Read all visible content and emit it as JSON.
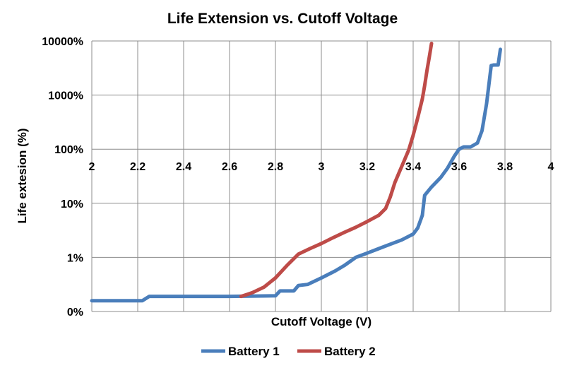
{
  "chart_data": {
    "type": "line",
    "title": "Life Extension vs. Cutoff Voltage",
    "xlabel": "Cutoff Voltage (V)",
    "ylabel": "Life extesion (%)",
    "x_ticks": [
      "2",
      "2.2",
      "2.4",
      "2.6",
      "2.8",
      "3",
      "3.2",
      "3.4",
      "3.6",
      "3.8",
      "4"
    ],
    "y_ticks": [
      "0%",
      "1%",
      "10%",
      "100%",
      "1000%",
      "10000%"
    ],
    "xlim": [
      2,
      4
    ],
    "y_scale": "log",
    "y_category_axis": "0% shown at the bottom as the axis floor; 1%–10000% decades on log scale",
    "grid": true,
    "legend_position": "bottom",
    "colors": {
      "Battery 1": "#4a7ebb",
      "Battery 2": "#be4b48"
    },
    "series": [
      {
        "name": "Battery 1",
        "x": [
          2.0,
          2.22,
          2.25,
          2.5,
          2.6,
          2.8,
          2.82,
          2.88,
          2.9,
          2.94,
          3.0,
          3.06,
          3.1,
          3.15,
          3.2,
          3.25,
          3.3,
          3.35,
          3.4,
          3.42,
          3.44,
          3.45,
          3.48,
          3.52,
          3.55,
          3.58,
          3.6,
          3.62,
          3.65,
          3.68,
          3.7,
          3.72,
          3.74,
          3.75,
          3.77,
          3.78
        ],
        "y": [
          0.2,
          0.2,
          0.28,
          0.28,
          0.28,
          0.29,
          0.38,
          0.38,
          0.48,
          0.5,
          0.62,
          0.75,
          0.85,
          1.0,
          1.2,
          1.45,
          1.75,
          2.1,
          2.7,
          3.5,
          6.0,
          14.0,
          20.0,
          30.0,
          45.0,
          75.0,
          100.0,
          110.0,
          110.0,
          130.0,
          220.0,
          700.0,
          3500.0,
          3600.0,
          3600.0,
          7000.0
        ]
      },
      {
        "name": "Battery 2",
        "x": [
          2.65,
          2.68,
          2.7,
          2.75,
          2.8,
          2.85,
          2.9,
          2.95,
          3.0,
          3.05,
          3.1,
          3.15,
          3.2,
          3.25,
          3.28,
          3.3,
          3.32,
          3.34,
          3.36,
          3.38,
          3.4,
          3.42,
          3.44,
          3.45,
          3.46,
          3.47,
          3.48
        ],
        "y": [
          0.28,
          0.32,
          0.35,
          0.45,
          0.62,
          0.85,
          1.15,
          1.45,
          1.8,
          2.3,
          2.9,
          3.6,
          4.6,
          6.0,
          8.0,
          13.0,
          24.0,
          38.0,
          60.0,
          95.0,
          180.0,
          380.0,
          850.0,
          1500.0,
          2800.0,
          5000.0,
          9000.0
        ]
      }
    ]
  }
}
